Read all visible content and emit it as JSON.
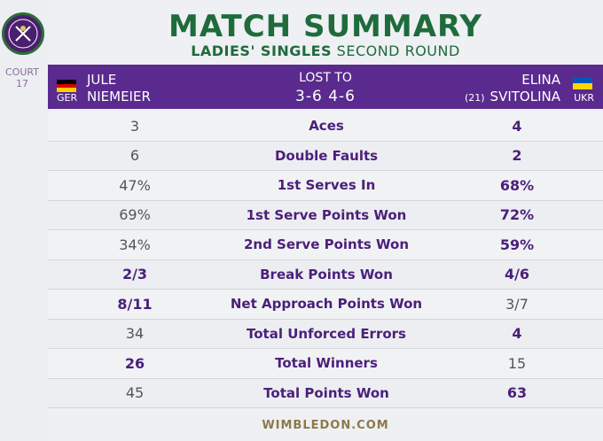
{
  "court": {
    "label": "COURT",
    "number": "17"
  },
  "logo_icon": "wimbledon-logo",
  "colors": {
    "purple": "#5a2a8e",
    "green": "#1f6b3c"
  },
  "title": "MATCH SUMMARY",
  "subtitle_bold": "LADIES' SINGLES",
  "subtitle_rest": "SECOND ROUND",
  "player1": {
    "first": "JULE",
    "last": "NIEMEIER",
    "country": "GER"
  },
  "result": {
    "label": "LOST TO",
    "score": "3-6 4-6"
  },
  "player2": {
    "first": "ELINA",
    "seed": "(21)",
    "last": "SVITOLINA",
    "country": "UKR"
  },
  "stats": [
    {
      "label": "Aces",
      "p1": "3",
      "p2": "4",
      "winner": 2
    },
    {
      "label": "Double Faults",
      "p1": "6",
      "p2": "2",
      "winner": 2
    },
    {
      "label": "1st Serves In",
      "p1": "47%",
      "p2": "68%",
      "winner": 2
    },
    {
      "label": "1st Serve Points Won",
      "p1": "69%",
      "p2": "72%",
      "winner": 2
    },
    {
      "label": "2nd Serve Points Won",
      "p1": "34%",
      "p2": "59%",
      "winner": 2
    },
    {
      "label": "Break Points Won",
      "p1": "2/3",
      "p2": "4/6",
      "winner": 0
    },
    {
      "label": "Net Approach Points Won",
      "p1": "8/11",
      "p2": "3/7",
      "winner": 1
    },
    {
      "label": "Total Unforced Errors",
      "p1": "34",
      "p2": "4",
      "winner": 2
    },
    {
      "label": "Total Winners",
      "p1": "26",
      "p2": "15",
      "winner": 1
    },
    {
      "label": "Total Points Won",
      "p1": "45",
      "p2": "63",
      "winner": 2
    }
  ],
  "footer": "WIMBLEDON.COM"
}
